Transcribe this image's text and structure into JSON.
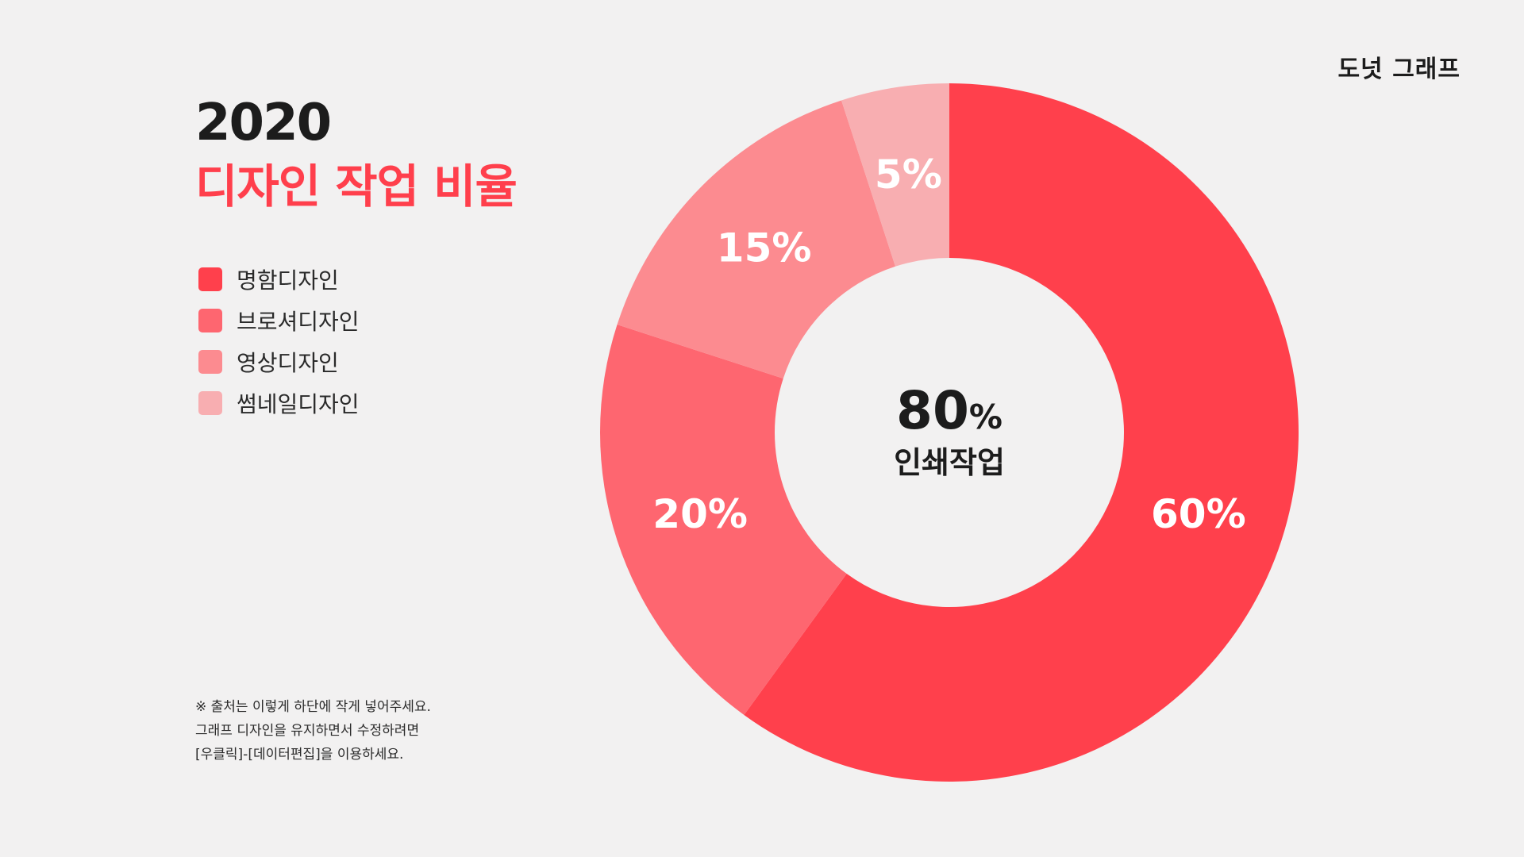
{
  "header": {
    "corner_label": "도넛 그래프",
    "year": "2020",
    "title": "디자인 작업 비율"
  },
  "center": {
    "value": "80",
    "unit": "%",
    "caption": "인쇄작업"
  },
  "source_note": {
    "lines": [
      "※ 출처는 이렇게 하단에 작게 넣어주세요.",
      "그래프 디자인을 유지하면서 수정하려면",
      "[우클릭]-[데이터편집]을 이용하세요."
    ]
  },
  "chart_data": {
    "type": "pie",
    "donut": true,
    "categories": [
      "명함디자인",
      "브로셔디자인",
      "영상디자인",
      "썸네일디자인"
    ],
    "values": [
      60,
      20,
      15,
      5
    ],
    "value_labels": [
      "60%",
      "20%",
      "15%",
      "5%"
    ],
    "colors": [
      "#ff404c",
      "#fe6670",
      "#fc8b90",
      "#f8aeb1"
    ],
    "legend": "left"
  }
}
